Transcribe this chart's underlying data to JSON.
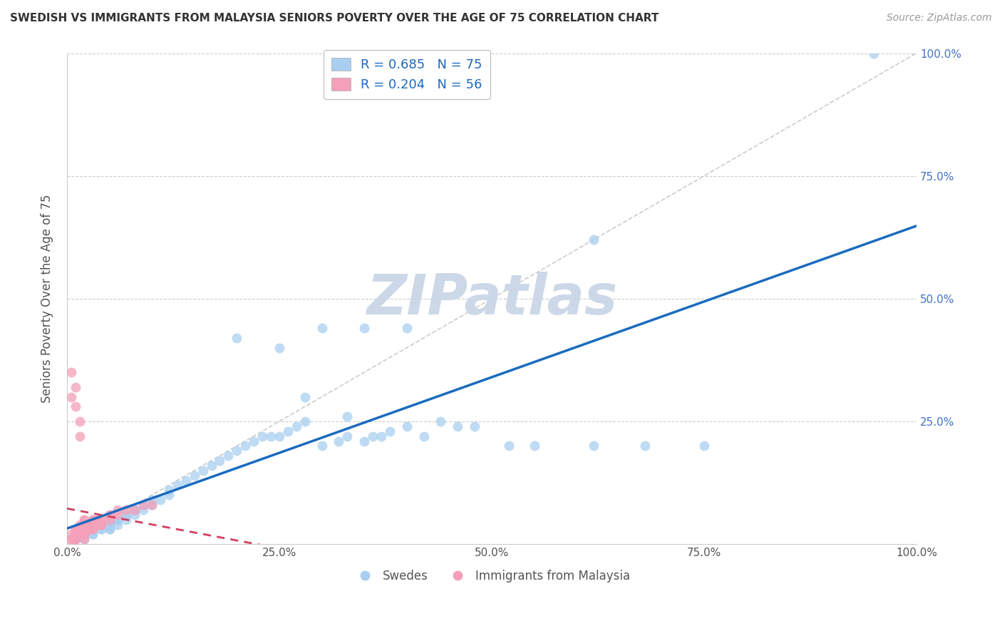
{
  "title": "SWEDISH VS IMMIGRANTS FROM MALAYSIA SENIORS POVERTY OVER THE AGE OF 75 CORRELATION CHART",
  "source": "Source: ZipAtlas.com",
  "ylabel": "Seniors Poverty Over the Age of 75",
  "xlabel": "",
  "xlim": [
    0,
    1.0
  ],
  "ylim": [
    0,
    1.0
  ],
  "xtick_labels": [
    "0.0%",
    "25.0%",
    "50.0%",
    "75.0%",
    "100.0%"
  ],
  "xtick_vals": [
    0.0,
    0.25,
    0.5,
    0.75,
    1.0
  ],
  "ytick_labels": [
    "25.0%",
    "50.0%",
    "75.0%",
    "100.0%"
  ],
  "ytick_vals": [
    0.25,
    0.5,
    0.75,
    1.0
  ],
  "legend_labels": [
    "Swedes",
    "Immigrants from Malaysia"
  ],
  "R_swedes": 0.685,
  "N_swedes": 75,
  "R_malaysia": 0.204,
  "N_malaysia": 56,
  "swede_color": "#a8cff0",
  "malaysia_color": "#f4a0b8",
  "swede_line_color": "#1a6bbf",
  "malaysia_line_color": "#d04060",
  "diagonal_color": "#cccccc",
  "background_color": "#ffffff",
  "title_color": "#333333",
  "watermark_color": "#ccd8e8",
  "swedes_x": [
    0.01,
    0.01,
    0.02,
    0.02,
    0.02,
    0.02,
    0.03,
    0.03,
    0.03,
    0.03,
    0.04,
    0.04,
    0.04,
    0.05,
    0.05,
    0.05,
    0.05,
    0.06,
    0.06,
    0.06,
    0.07,
    0.07,
    0.07,
    0.08,
    0.08,
    0.08,
    0.09,
    0.09,
    0.1,
    0.1,
    0.11,
    0.12,
    0.12,
    0.13,
    0.14,
    0.15,
    0.16,
    0.17,
    0.18,
    0.19,
    0.2,
    0.21,
    0.22,
    0.23,
    0.24,
    0.25,
    0.26,
    0.27,
    0.28,
    0.3,
    0.32,
    0.33,
    0.35,
    0.36,
    0.37,
    0.38,
    0.4,
    0.42,
    0.44,
    0.46,
    0.48,
    0.52,
    0.55,
    0.62,
    0.68,
    0.75,
    0.3,
    0.25,
    0.35,
    0.4,
    0.2,
    0.28,
    0.33,
    0.95,
    0.62
  ],
  "swedes_y": [
    0.01,
    0.01,
    0.01,
    0.02,
    0.02,
    0.02,
    0.02,
    0.02,
    0.03,
    0.03,
    0.03,
    0.03,
    0.04,
    0.03,
    0.03,
    0.04,
    0.04,
    0.04,
    0.05,
    0.05,
    0.05,
    0.06,
    0.06,
    0.06,
    0.07,
    0.07,
    0.07,
    0.08,
    0.08,
    0.09,
    0.09,
    0.1,
    0.11,
    0.12,
    0.13,
    0.14,
    0.15,
    0.16,
    0.17,
    0.18,
    0.19,
    0.2,
    0.21,
    0.22,
    0.22,
    0.22,
    0.23,
    0.24,
    0.25,
    0.2,
    0.21,
    0.22,
    0.21,
    0.22,
    0.22,
    0.23,
    0.24,
    0.22,
    0.25,
    0.24,
    0.24,
    0.2,
    0.2,
    0.2,
    0.2,
    0.2,
    0.44,
    0.4,
    0.44,
    0.44,
    0.42,
    0.3,
    0.26,
    1.0,
    0.62
  ],
  "malaysia_x": [
    0.005,
    0.005,
    0.005,
    0.01,
    0.01,
    0.01,
    0.01,
    0.01,
    0.01,
    0.01,
    0.01,
    0.01,
    0.015,
    0.015,
    0.015,
    0.015,
    0.015,
    0.02,
    0.02,
    0.02,
    0.02,
    0.02,
    0.02,
    0.02,
    0.02,
    0.02,
    0.02,
    0.025,
    0.025,
    0.03,
    0.03,
    0.03,
    0.03,
    0.03,
    0.03,
    0.035,
    0.035,
    0.04,
    0.04,
    0.04,
    0.04,
    0.05,
    0.05,
    0.05,
    0.06,
    0.06,
    0.07,
    0.08,
    0.09,
    0.1,
    0.005,
    0.005,
    0.01,
    0.01,
    0.015,
    0.015
  ],
  "malaysia_y": [
    0.01,
    0.01,
    0.02,
    0.01,
    0.01,
    0.01,
    0.02,
    0.02,
    0.02,
    0.03,
    0.03,
    0.03,
    0.02,
    0.02,
    0.03,
    0.03,
    0.04,
    0.01,
    0.02,
    0.02,
    0.02,
    0.03,
    0.03,
    0.04,
    0.04,
    0.05,
    0.05,
    0.03,
    0.04,
    0.03,
    0.03,
    0.04,
    0.04,
    0.05,
    0.05,
    0.04,
    0.05,
    0.04,
    0.04,
    0.05,
    0.05,
    0.05,
    0.06,
    0.06,
    0.06,
    0.07,
    0.07,
    0.07,
    0.08,
    0.08,
    0.35,
    0.3,
    0.32,
    0.28,
    0.25,
    0.22
  ]
}
